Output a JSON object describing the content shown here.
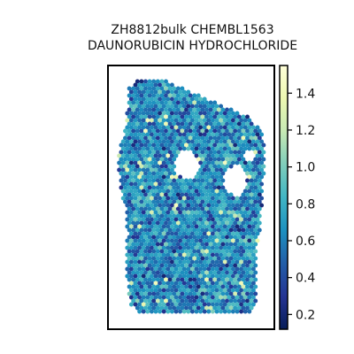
{
  "chart_data": {
    "type": "heatmap",
    "title_lines": [
      "ZH8812bulk CHEMBL1563",
      "DAUNORUBICIN HYDROCHLORIDE"
    ],
    "xlabel": "",
    "ylabel": "",
    "grid": false,
    "colorbar": {
      "cmap": "YlGnBu_r",
      "vmin": 0.12,
      "vmax": 1.55,
      "ticks": [
        0.2,
        0.4,
        0.6,
        0.8,
        1.0,
        1.2,
        1.4
      ],
      "tick_labels": [
        "0.2",
        "0.4",
        "0.6",
        "0.8",
        "1.0",
        "1.2",
        "1.4"
      ],
      "position": "right"
    },
    "value_distribution": {
      "typical_min": 0.3,
      "typical_max": 1.2,
      "median_estimate": 0.65
    }
  }
}
